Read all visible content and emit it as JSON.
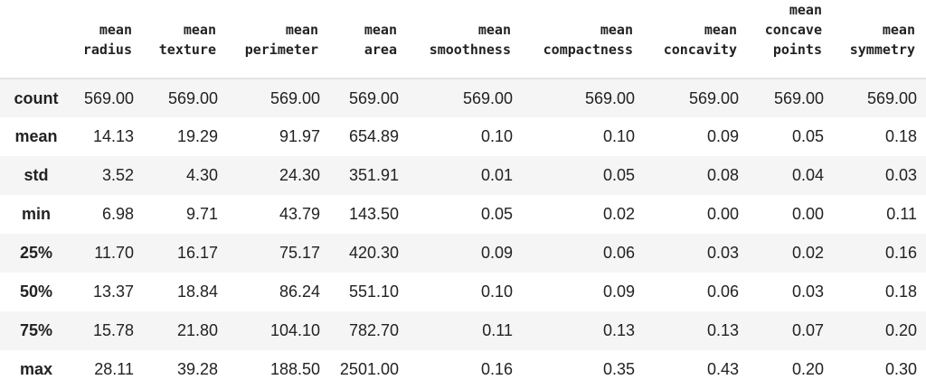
{
  "table": {
    "columns": [
      "mean\nradius",
      "mean\ntexture",
      "mean\nperimeter",
      "mean\narea",
      "mean\nsmoothness",
      "mean\ncompactness",
      "mean\nconcavity",
      "mean\nconcave\npoints",
      "mean\nsymmetry"
    ],
    "rows": [
      {
        "label": "count",
        "values": [
          "569.00",
          "569.00",
          "569.00",
          "569.00",
          "569.00",
          "569.00",
          "569.00",
          "569.00",
          "569.00"
        ]
      },
      {
        "label": "mean",
        "values": [
          "14.13",
          "19.29",
          "91.97",
          "654.89",
          "0.10",
          "0.10",
          "0.09",
          "0.05",
          "0.18"
        ]
      },
      {
        "label": "std",
        "values": [
          "3.52",
          "4.30",
          "24.30",
          "351.91",
          "0.01",
          "0.05",
          "0.08",
          "0.04",
          "0.03"
        ]
      },
      {
        "label": "min",
        "values": [
          "6.98",
          "9.71",
          "43.79",
          "143.50",
          "0.05",
          "0.02",
          "0.00",
          "0.00",
          "0.11"
        ]
      },
      {
        "label": "25%",
        "values": [
          "11.70",
          "16.17",
          "75.17",
          "420.30",
          "0.09",
          "0.06",
          "0.03",
          "0.02",
          "0.16"
        ]
      },
      {
        "label": "50%",
        "values": [
          "13.37",
          "18.84",
          "86.24",
          "551.10",
          "0.10",
          "0.09",
          "0.06",
          "0.03",
          "0.18"
        ]
      },
      {
        "label": "75%",
        "values": [
          "15.78",
          "21.80",
          "104.10",
          "782.70",
          "0.11",
          "0.13",
          "0.13",
          "0.07",
          "0.20"
        ]
      },
      {
        "label": "max",
        "values": [
          "28.11",
          "39.28",
          "188.50",
          "2501.00",
          "0.16",
          "0.35",
          "0.43",
          "0.20",
          "0.30"
        ]
      }
    ]
  }
}
